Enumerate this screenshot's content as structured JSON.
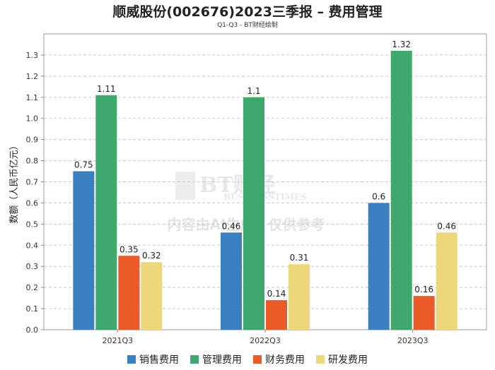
{
  "header": {
    "title": "顺威股份(002676)2023三季报 – 费用管理",
    "subtitle": "Q1-Q3 - BT财经绘制"
  },
  "watermark": {
    "logo_text": "BT财经",
    "logo_sub": "BUSINESSTIMES",
    "notice": "内容由AI生成，仅供参考"
  },
  "chart_data": {
    "type": "bar",
    "title": "顺威股份(002676)2023三季报 – 费用管理",
    "subtitle": "Q1-Q3 - BT财经绘制",
    "xlabel": "",
    "ylabel": "数额（人民币亿元）",
    "ylim": [
      0,
      1.4
    ],
    "yticks": [
      "0.0",
      "0.1",
      "0.2",
      "0.3",
      "0.4",
      "0.5",
      "0.6",
      "0.7",
      "0.8",
      "0.9",
      "1.0",
      "1.1",
      "1.2",
      "1.3"
    ],
    "grid": true,
    "legend_position": "bottom",
    "categories": [
      "2021Q3",
      "2022Q3",
      "2023Q3"
    ],
    "series": [
      {
        "name": "销售费用",
        "color": "#3a7fbf",
        "values": [
          0.75,
          0.46,
          0.6
        ]
      },
      {
        "name": "管理费用",
        "color": "#3fa86f",
        "values": [
          1.11,
          1.1,
          1.32
        ]
      },
      {
        "name": "财务费用",
        "color": "#ec5a28",
        "values": [
          0.35,
          0.14,
          0.16
        ]
      },
      {
        "name": "研发费用",
        "color": "#ecd77a",
        "values": [
          0.32,
          0.31,
          0.46
        ]
      }
    ],
    "data_labels": [
      [
        "0.75",
        "0.46",
        "0.6"
      ],
      [
        "1.11",
        "1.1",
        "1.32"
      ],
      [
        "0.35",
        "0.14",
        "0.16"
      ],
      [
        "0.32",
        "0.31",
        "0.46"
      ]
    ]
  }
}
